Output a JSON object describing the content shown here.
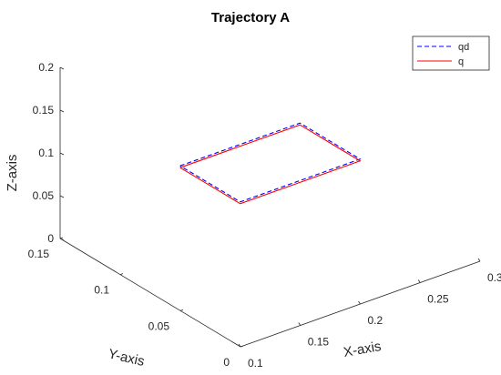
{
  "chart_data": {
    "type": "line",
    "title": "Trajectory A",
    "xlabel": "X-axis",
    "ylabel": "Y-axis",
    "zlabel": "Z-axis",
    "xlim": [
      0.1,
      0.3
    ],
    "ylim": [
      0,
      0.15
    ],
    "zlim": [
      0,
      0.2
    ],
    "xticks": [
      "0.1",
      "0.15",
      "0.2",
      "0.25",
      "0.3"
    ],
    "yticks": [
      "0",
      "0.05",
      "0.1",
      "0.15"
    ],
    "zticks": [
      "0",
      "0.05",
      "0.1",
      "0.15",
      "0.2"
    ],
    "legend_position": "top-right",
    "grid": false,
    "series": [
      {
        "name": "qd",
        "color": "#0000ff",
        "style": "dashed",
        "points": [
          [
            0.15,
            0.1,
            0.1
          ],
          [
            0.25,
            0.1,
            0.1
          ],
          [
            0.25,
            0.05,
            0.1
          ],
          [
            0.15,
            0.05,
            0.1
          ],
          [
            0.15,
            0.1,
            0.1
          ]
        ]
      },
      {
        "name": "q",
        "color": "#ff0000",
        "style": "solid",
        "points": [
          [
            0.15,
            0.1,
            0.1
          ],
          [
            0.25,
            0.1,
            0.1
          ],
          [
            0.25,
            0.05,
            0.1
          ],
          [
            0.15,
            0.05,
            0.1
          ],
          [
            0.15,
            0.1,
            0.1
          ]
        ]
      }
    ]
  }
}
